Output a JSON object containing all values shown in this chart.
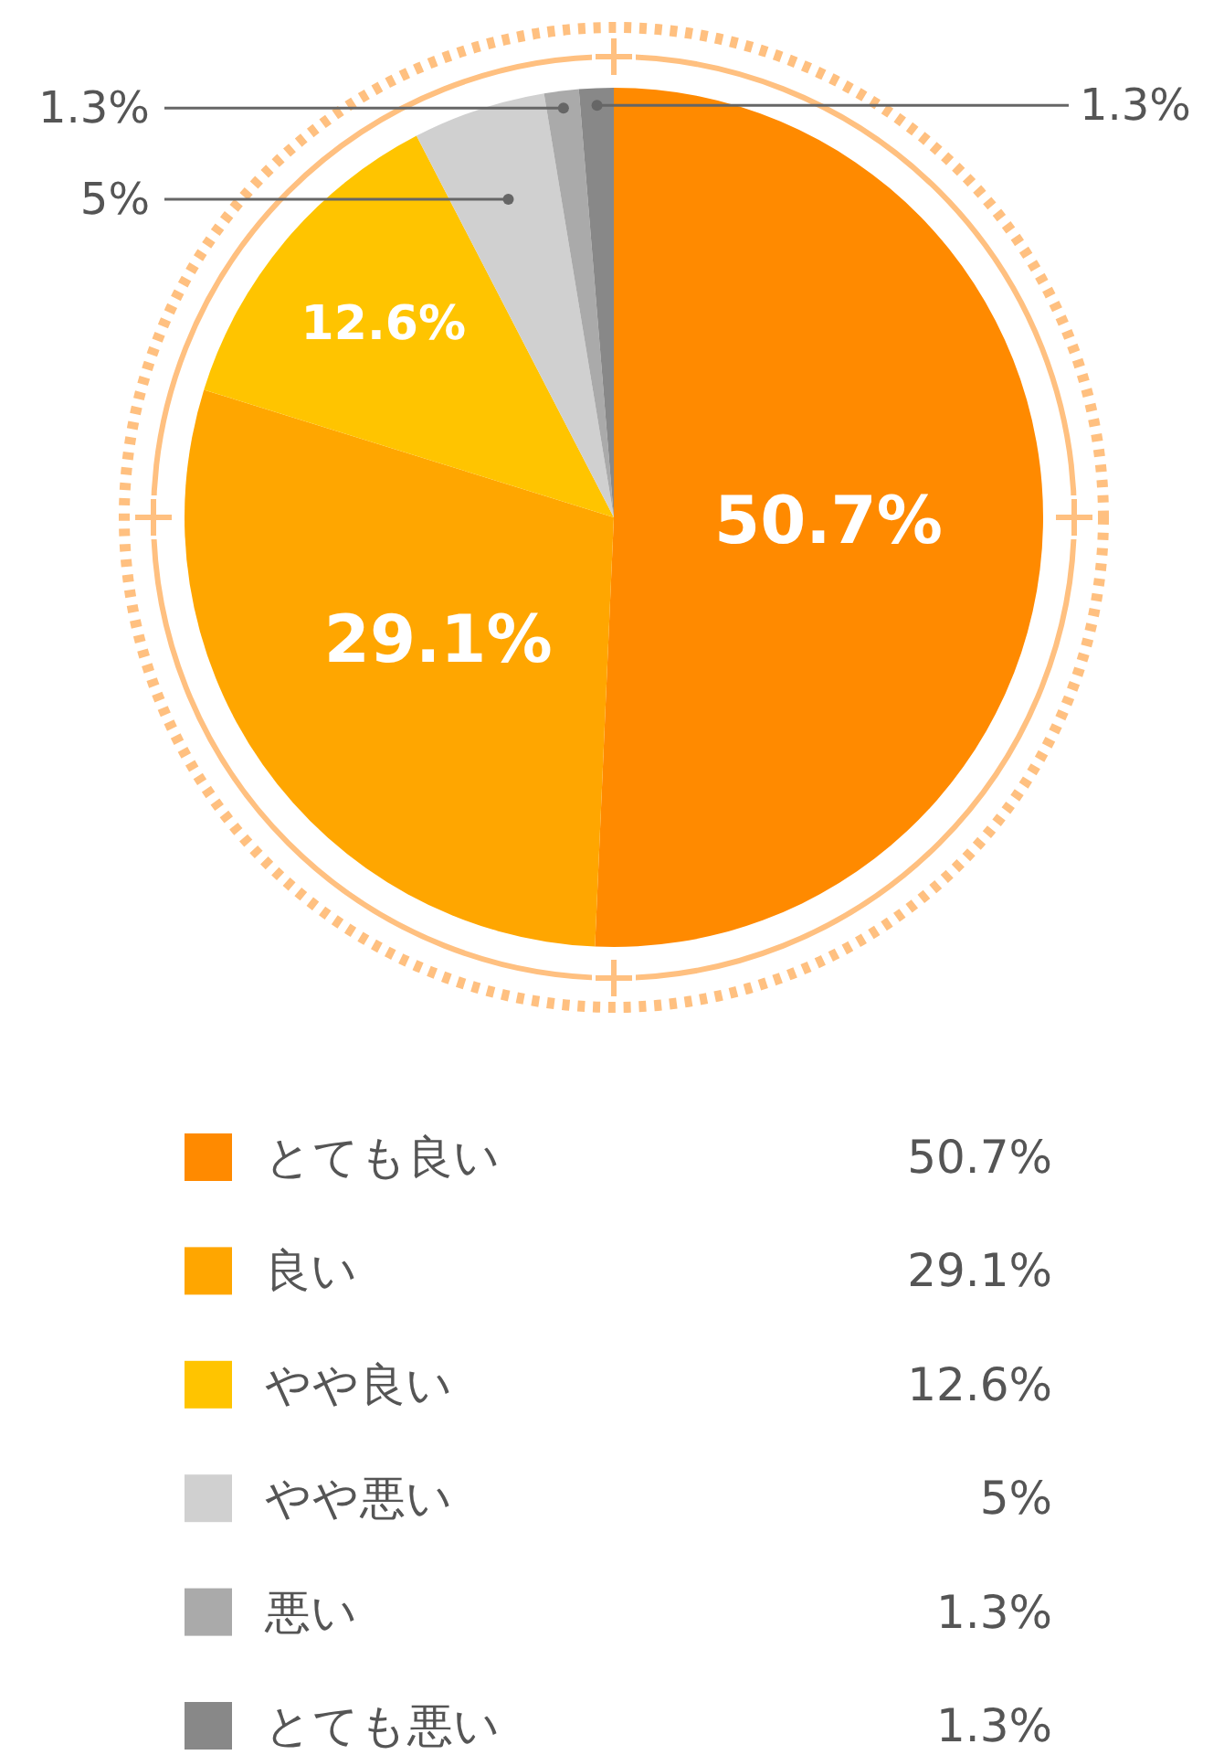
{
  "chart_data": {
    "type": "pie",
    "categories": [
      "とても良い",
      "良い",
      "やや良い",
      "やや悪い",
      "悪い",
      "とても悪い"
    ],
    "values": [
      50.7,
      29.1,
      12.6,
      5,
      1.3,
      1.3
    ],
    "value_labels": [
      "50.7%",
      "29.1%",
      "12.6%",
      "5%",
      "1.3%",
      "1.3%"
    ],
    "colors": [
      "#ff8a00",
      "#ffa600",
      "#ffc400",
      "#d0d0d0",
      "#aaaaaa",
      "#888888"
    ],
    "legend": "bottom"
  }
}
